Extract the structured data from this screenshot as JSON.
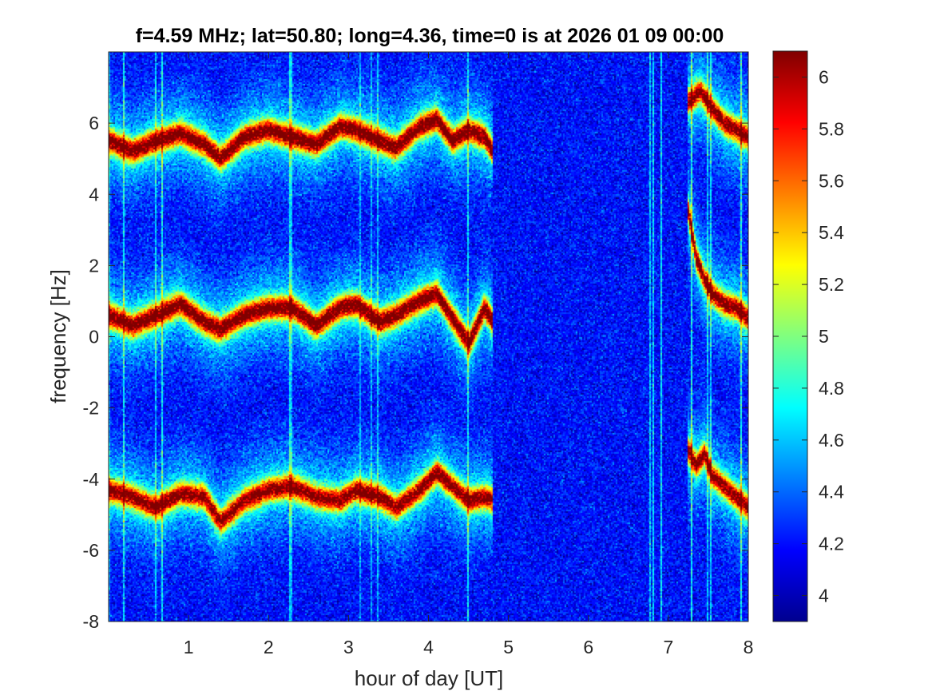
{
  "chart_data": {
    "type": "heatmap",
    "title": "f=4.59 MHz;  lat=50.80; long=4.36, time=0 is at 2026 01 09 00:00",
    "xlabel": "hour of day [UT]",
    "ylabel": "frequency [Hz]",
    "xlim": [
      0,
      8
    ],
    "ylim": [
      -8,
      8
    ],
    "x_ticks": [
      1,
      2,
      3,
      4,
      5,
      6,
      7,
      8
    ],
    "x_tick_labels": [
      "1",
      "2",
      "3",
      "4",
      "5",
      "6",
      "7",
      "8"
    ],
    "y_ticks": [
      -8,
      -6,
      -4,
      -2,
      0,
      2,
      4,
      6
    ],
    "y_tick_labels": [
      "-8",
      "-6",
      "-4",
      "-2",
      "0",
      "2",
      "4",
      "6"
    ],
    "colorbar": {
      "colormap": "jet",
      "clim": [
        3.9,
        6.1
      ],
      "ticks": [
        4,
        4.2,
        4.4,
        4.6,
        4.8,
        5,
        5.2,
        5.4,
        5.6,
        5.8,
        6
      ],
      "tick_labels": [
        "4",
        "4.2",
        "4.4",
        "4.6",
        "4.8",
        "5",
        "5.2",
        "5.4",
        "5.6",
        "5.8",
        "6"
      ]
    },
    "background_level": 4.2,
    "traces": [
      {
        "x": [
          0.0,
          0.3,
          0.6,
          0.9,
          1.2,
          1.4,
          1.7,
          2.0,
          2.3,
          2.6,
          2.9,
          3.1,
          3.4,
          3.6,
          3.9,
          4.1,
          4.3,
          4.5,
          4.7,
          4.8
        ],
        "y": [
          5.5,
          5.2,
          5.5,
          5.7,
          5.4,
          5.0,
          5.6,
          5.8,
          5.6,
          5.4,
          5.9,
          5.8,
          5.5,
          5.3,
          5.9,
          6.1,
          5.5,
          5.8,
          5.6,
          5.2
        ],
        "peak": 6.0
      },
      {
        "x": [
          0.0,
          0.3,
          0.6,
          0.9,
          1.2,
          1.4,
          1.7,
          2.0,
          2.3,
          2.6,
          2.9,
          3.1,
          3.4,
          3.6,
          3.9,
          4.1,
          4.3,
          4.5,
          4.7,
          4.8
        ],
        "y": [
          0.6,
          0.3,
          0.6,
          0.9,
          0.4,
          0.2,
          0.6,
          0.8,
          0.8,
          0.3,
          0.8,
          0.9,
          0.4,
          0.6,
          1.0,
          1.2,
          0.5,
          -0.2,
          0.8,
          0.4
        ],
        "peak": 6.0
      },
      {
        "x": [
          0.0,
          0.3,
          0.6,
          0.9,
          1.2,
          1.4,
          1.7,
          2.0,
          2.3,
          2.6,
          2.9,
          3.1,
          3.4,
          3.6,
          3.9,
          4.1,
          4.3,
          4.5,
          4.7,
          4.8
        ],
        "y": [
          -4.3,
          -4.5,
          -4.8,
          -4.4,
          -4.5,
          -5.2,
          -4.6,
          -4.3,
          -4.2,
          -4.5,
          -4.6,
          -4.3,
          -4.5,
          -4.8,
          -4.3,
          -3.8,
          -4.2,
          -4.6,
          -4.5,
          -4.6
        ],
        "peak": 5.9
      },
      {
        "x": [
          7.25,
          7.4,
          7.55,
          7.7,
          7.85,
          8.0
        ],
        "y": [
          6.6,
          6.9,
          6.4,
          6.0,
          5.8,
          5.6
        ],
        "peak": 5.9
      },
      {
        "x": [
          7.25,
          7.35,
          7.45,
          7.55,
          7.7,
          7.85,
          8.0
        ],
        "y": [
          3.5,
          2.2,
          1.6,
          1.2,
          0.9,
          0.8,
          0.5
        ],
        "peak": 5.9
      },
      {
        "x": [
          7.25,
          7.35,
          7.45,
          7.55,
          7.7,
          7.85,
          8.0
        ],
        "y": [
          -3.2,
          -3.6,
          -3.3,
          -3.9,
          -4.2,
          -4.5,
          -4.8
        ],
        "peak": 5.9
      }
    ]
  }
}
